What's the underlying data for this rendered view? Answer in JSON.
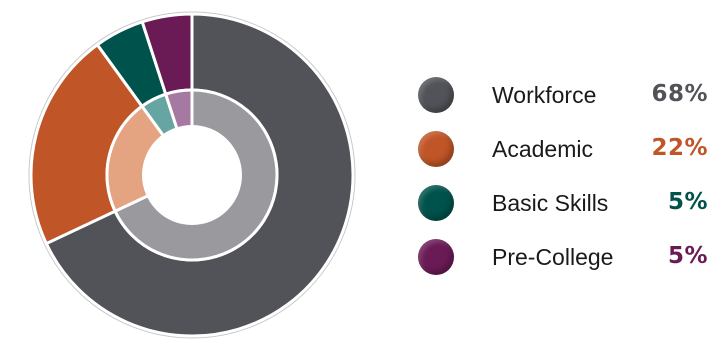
{
  "chart_data": {
    "type": "pie",
    "variant": "donut",
    "categories": [
      "Workforce",
      "Academic",
      "Basic Skills",
      "Pre-College"
    ],
    "values": [
      68,
      22,
      5,
      5
    ],
    "value_labels": [
      "68%",
      "22%",
      "5%",
      "5%"
    ],
    "colors": [
      "#515358",
      "#c05527",
      "#00524c",
      "#6a1b56"
    ],
    "inner_colors": [
      "#9a9a9e",
      "#e4a381",
      "#66a5a1",
      "#a679a2"
    ],
    "legend_position": "right",
    "title": "",
    "start_angle_deg": 0,
    "direction": "clockwise"
  }
}
